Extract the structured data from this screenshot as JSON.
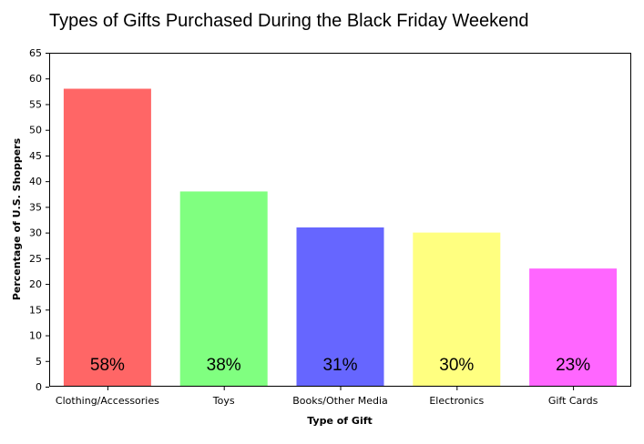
{
  "chart_data": {
    "type": "bar",
    "title": "Types of Gifts Purchased During the Black Friday Weekend",
    "xlabel": "Type of Gift",
    "ylabel": "Percentage of U.S. Shoppers",
    "categories": [
      "Clothing/Accessories",
      "Toys",
      "Books/Other Media",
      "Electronics",
      "Gift Cards"
    ],
    "values": [
      58,
      38,
      31,
      30,
      23
    ],
    "data_labels": [
      "58%",
      "38%",
      "31%",
      "30%",
      "23%"
    ],
    "colors": [
      "#ff6666",
      "#80ff80",
      "#6666ff",
      "#ffff80",
      "#ff66ff"
    ],
    "ylim": [
      0,
      65
    ],
    "yticks": [
      0,
      5,
      10,
      15,
      20,
      25,
      30,
      35,
      40,
      45,
      50,
      55,
      60,
      65
    ],
    "grid": false,
    "legend": "none"
  }
}
